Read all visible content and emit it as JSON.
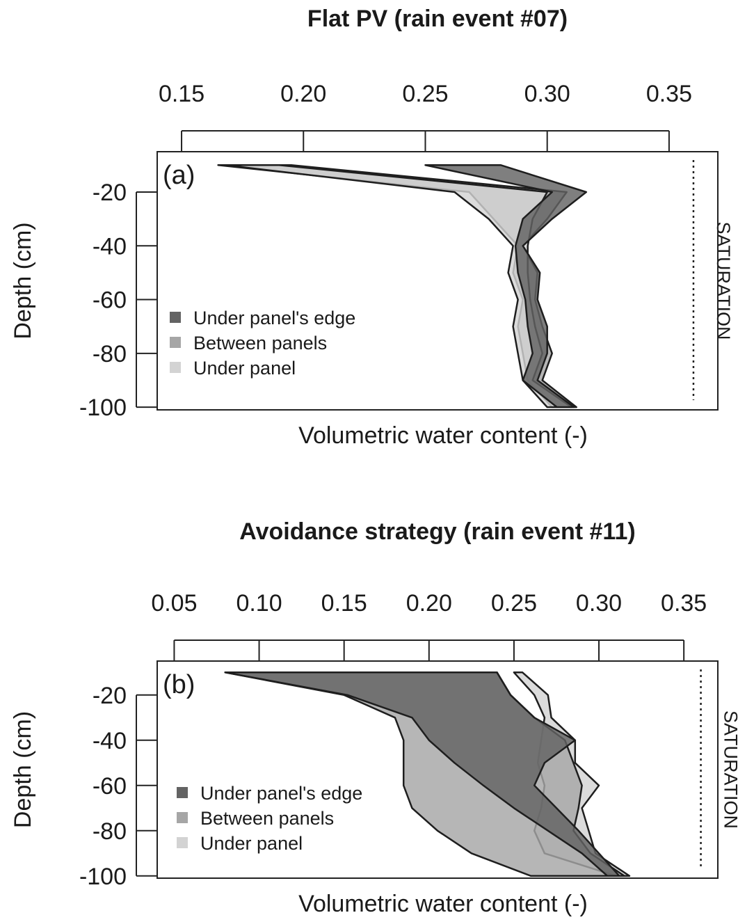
{
  "chart_data": [
    {
      "type": "area",
      "title": "Flat PV (rain event #07)",
      "panel_label": "(a)",
      "xlabel": "Volumetric water content (-)",
      "ylabel": "Depth (cm)",
      "x_ticks": [
        0.15,
        0.2,
        0.25,
        0.3,
        0.35
      ],
      "x_tick_labels": [
        "0.15",
        "0.20",
        "0.25",
        "0.30",
        "0.35"
      ],
      "y_ticks": [
        -20,
        -40,
        -60,
        -80,
        -100
      ],
      "y_tick_labels": [
        "-20",
        "-40",
        "-60",
        "-80",
        "-100"
      ],
      "xlim": [
        0.14,
        0.37
      ],
      "ylim": [
        -101,
        -5
      ],
      "x_axis_position": "top",
      "saturation": {
        "x": 0.36,
        "label": "SATURATION"
      },
      "depths": [
        -10,
        -20,
        -30,
        -40,
        -50,
        -60,
        -70,
        -80,
        -90,
        -100
      ],
      "legend_position": "bottom-left",
      "series": [
        {
          "name": "Between panels",
          "color": "#a6a6a6",
          "min": [
            0.165,
            0.268,
            0.278,
            0.288,
            0.286,
            0.29,
            0.288,
            0.29,
            0.292,
            0.302
          ],
          "max": [
            0.195,
            0.308,
            0.3,
            0.29,
            0.296,
            0.295,
            0.298,
            0.302,
            0.298,
            0.312
          ]
        },
        {
          "name": "Under panel",
          "color": "#d3d3d3",
          "min": [
            0.168,
            0.262,
            0.276,
            0.286,
            0.284,
            0.288,
            0.286,
            0.288,
            0.29,
            0.3
          ],
          "max": [
            0.19,
            0.3,
            0.294,
            0.292,
            0.292,
            0.293,
            0.295,
            0.298,
            0.294,
            0.31
          ]
        },
        {
          "name": "Under panel's edge",
          "color": "#636363",
          "min": [
            0.25,
            0.302,
            0.29,
            0.287,
            0.288,
            0.291,
            0.292,
            0.294,
            0.29,
            0.304
          ],
          "max": [
            0.281,
            0.316,
            0.302,
            0.29,
            0.297,
            0.296,
            0.3,
            0.3,
            0.296,
            0.311
          ]
        }
      ]
    },
    {
      "type": "area",
      "title": "Avoidance strategy (rain event #11)",
      "panel_label": "(b)",
      "xlabel": "Volumetric water content (-)",
      "ylabel": "Depth (cm)",
      "x_ticks": [
        0.05,
        0.1,
        0.15,
        0.2,
        0.25,
        0.3,
        0.35
      ],
      "x_tick_labels": [
        "0.05",
        "0.10",
        "0.15",
        "0.20",
        "0.25",
        "0.30",
        "0.35"
      ],
      "y_ticks": [
        -20,
        -40,
        -60,
        -80,
        -100
      ],
      "y_tick_labels": [
        "-20",
        "-40",
        "-60",
        "-80",
        "-100"
      ],
      "xlim": [
        0.04,
        0.37
      ],
      "ylim": [
        -101,
        -5
      ],
      "x_axis_position": "top",
      "saturation": {
        "x": 0.36,
        "label": "SATURATION"
      },
      "depths": [
        -10,
        -20,
        -30,
        -40,
        -50,
        -60,
        -70,
        -80,
        -90,
        -100
      ],
      "legend_position": "bottom-left",
      "series": [
        {
          "name": "Under panel",
          "color": "#d3d3d3",
          "min": [
            0.25,
            0.262,
            0.268,
            0.266,
            0.264,
            0.268,
            0.266,
            0.262,
            0.268,
            0.31
          ],
          "max": [
            0.255,
            0.27,
            0.272,
            0.286,
            0.286,
            0.3,
            0.29,
            0.294,
            0.298,
            0.318
          ]
        },
        {
          "name": "Between panels",
          "color": "#a6a6a6",
          "min": [
            0.08,
            0.15,
            0.18,
            0.185,
            0.185,
            0.185,
            0.19,
            0.205,
            0.225,
            0.26
          ],
          "max": [
            0.24,
            0.248,
            0.262,
            0.28,
            0.285,
            0.29,
            0.288,
            0.285,
            0.295,
            0.315
          ]
        },
        {
          "name": "Under panel's edge",
          "color": "#636363",
          "min": [
            0.08,
            0.152,
            0.19,
            0.2,
            0.215,
            0.232,
            0.25,
            0.27,
            0.29,
            0.305
          ],
          "max": [
            0.24,
            0.248,
            0.262,
            0.286,
            0.268,
            0.262,
            0.275,
            0.288,
            0.3,
            0.312
          ]
        }
      ]
    }
  ]
}
